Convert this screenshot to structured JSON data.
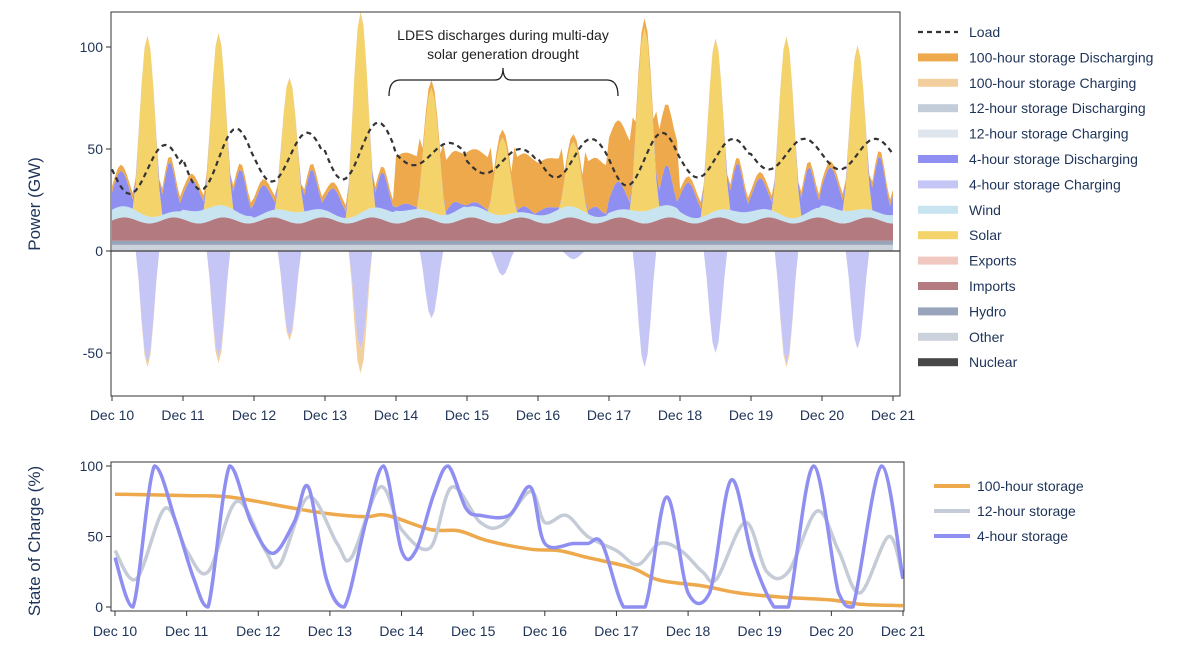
{
  "chart_data": [
    {
      "type": "area",
      "ylabel": "Power (GW)",
      "xlabel": "",
      "ylim": [
        -70,
        112
      ],
      "yticks": [
        -50,
        0,
        50,
        100
      ],
      "x_tick_labels": [
        "Dec 10",
        "Dec 11",
        "Dec 12",
        "Dec 13",
        "Dec 14",
        "Dec 15",
        "Dec 16",
        "Dec 17",
        "Dec 18",
        "Dec 19",
        "Dec 20",
        "Dec 21"
      ],
      "annotation": "LDES discharges during multi-day solar generation drought",
      "annotation_lines": [
        "LDES discharges during multi-day",
        "solar generation drought"
      ],
      "legend": [
        {
          "label": "Load",
          "color": "#333333",
          "style": "dashed"
        },
        {
          "label": "100-hour storage Discharging",
          "color": "#eda94b"
        },
        {
          "label": "100-hour storage Charging",
          "color": "#f3cf9e"
        },
        {
          "label": "12-hour storage Discharging",
          "color": "#c3ccd9"
        },
        {
          "label": "12-hour storage Charging",
          "color": "#dfe5ec"
        },
        {
          "label": "4-hour storage Discharging",
          "color": "#8f8ff2"
        },
        {
          "label": "4-hour storage Charging",
          "color": "#c6c6f6"
        },
        {
          "label": "Wind",
          "color": "#c7e4f0"
        },
        {
          "label": "Solar",
          "color": "#f3d36a"
        },
        {
          "label": "Exports",
          "color": "#f0c8bf"
        },
        {
          "label": "Imports",
          "color": "#b37a80"
        },
        {
          "label": "Hydro",
          "color": "#98a4ba"
        },
        {
          "label": "Other",
          "color": "#ccd2dc"
        },
        {
          "label": "Nuclear",
          "color": "#474747"
        }
      ],
      "series": [
        {
          "name": "Other",
          "values_by_day": [
            3,
            3,
            3,
            3,
            3,
            3,
            3,
            3,
            3,
            3,
            3,
            3
          ]
        },
        {
          "name": "Hydro",
          "values_by_day": [
            2,
            2,
            2,
            2,
            2,
            2,
            2,
            2,
            2,
            2,
            2,
            2
          ]
        },
        {
          "name": "Imports",
          "values_by_day": [
            10,
            10,
            10,
            10,
            10,
            10,
            10,
            10,
            10,
            10,
            10,
            10
          ]
        },
        {
          "name": "Wind",
          "values_by_day": [
            4,
            5,
            4,
            4,
            5,
            4,
            4,
            5,
            4,
            4,
            5,
            5
          ]
        },
        {
          "name": "Solar",
          "daily_peak": [
            88,
            84,
            65,
            98,
            61,
            38,
            32,
            90,
            84,
            88,
            80
          ]
        },
        {
          "name": "4-hour storage Discharging",
          "daily_peak": [
            25,
            22,
            20,
            18,
            5,
            3,
            5,
            20,
            24,
            22,
            28
          ]
        },
        {
          "name": "100-hour storage Discharging",
          "daily_peak": [
            3,
            3,
            3,
            3,
            25,
            26,
            24,
            30,
            3,
            3,
            3
          ]
        },
        {
          "name": "4-hour storage Charging",
          "daily_min": [
            -55,
            -52,
            -42,
            -48,
            -33,
            -12,
            -4,
            -57,
            -50,
            -55,
            -48
          ]
        },
        {
          "name": "100-hour storage Charging",
          "daily_min": [
            -2,
            -3,
            -2,
            -12,
            0,
            0,
            0,
            0,
            0,
            -2,
            0
          ]
        }
      ],
      "load": {
        "name": "Load",
        "daily_peak": [
          52,
          60,
          58,
          63,
          53,
          50,
          55,
          58,
          55,
          55,
          55
        ],
        "daily_min": [
          28,
          30,
          34,
          35,
          42,
          38,
          36,
          32,
          36,
          40,
          40
        ]
      }
    },
    {
      "type": "line",
      "ylabel": "State of Charge (%)",
      "xlabel": "",
      "ylim": [
        0,
        100
      ],
      "yticks": [
        0,
        50,
        100
      ],
      "x_tick_labels": [
        "Dec 10",
        "Dec 11",
        "Dec 12",
        "Dec 13",
        "Dec 14",
        "Dec 15",
        "Dec 16",
        "Dec 17",
        "Dec 18",
        "Dec 19",
        "Dec 20",
        "Dec 21"
      ],
      "series": [
        {
          "name": "100-hour storage",
          "color": "#eda94b",
          "points": [
            [
              0,
              80
            ],
            [
              1,
              79
            ],
            [
              1.6,
              78
            ],
            [
              2.5,
              70
            ],
            [
              3.0,
              66
            ],
            [
              3.5,
              64
            ],
            [
              3.8,
              65
            ],
            [
              4.4,
              55
            ],
            [
              4.8,
              54
            ],
            [
              5.2,
              47
            ],
            [
              5.8,
              41
            ],
            [
              6.2,
              40
            ],
            [
              6.6,
              35
            ],
            [
              7.2,
              28
            ],
            [
              7.6,
              19
            ],
            [
              8.2,
              15
            ],
            [
              8.7,
              10
            ],
            [
              9.3,
              7
            ],
            [
              10,
              5
            ],
            [
              10.4,
              2
            ],
            [
              11,
              1
            ]
          ]
        },
        {
          "name": "12-hour storage",
          "color": "#c5ccd7",
          "points": [
            [
              0,
              40
            ],
            [
              0.3,
              20
            ],
            [
              0.7,
              70
            ],
            [
              1.0,
              40
            ],
            [
              1.3,
              25
            ],
            [
              1.7,
              75
            ],
            [
              2.1,
              40
            ],
            [
              2.3,
              30
            ],
            [
              2.7,
              78
            ],
            [
              3.1,
              45
            ],
            [
              3.3,
              35
            ],
            [
              3.7,
              85
            ],
            [
              4.0,
              55
            ],
            [
              4.4,
              42
            ],
            [
              4.7,
              85
            ],
            [
              5.1,
              60
            ],
            [
              5.4,
              58
            ],
            [
              5.8,
              82
            ],
            [
              6.0,
              60
            ],
            [
              6.3,
              65
            ],
            [
              6.6,
              50
            ],
            [
              7.0,
              40
            ],
            [
              7.3,
              30
            ],
            [
              7.6,
              45
            ],
            [
              7.9,
              40
            ],
            [
              8.2,
              25
            ],
            [
              8.4,
              20
            ],
            [
              8.8,
              60
            ],
            [
              9.1,
              25
            ],
            [
              9.4,
              25
            ],
            [
              9.8,
              68
            ],
            [
              10.1,
              40
            ],
            [
              10.4,
              10
            ],
            [
              10.8,
              50
            ],
            [
              11,
              20
            ]
          ]
        },
        {
          "name": "4-hour storage",
          "color": "#8f8ff2",
          "points": [
            [
              0,
              35
            ],
            [
              0.25,
              0
            ],
            [
              0.55,
              100
            ],
            [
              0.85,
              60
            ],
            [
              1.1,
              20
            ],
            [
              1.3,
              0
            ],
            [
              1.6,
              100
            ],
            [
              1.9,
              60
            ],
            [
              2.2,
              38
            ],
            [
              2.5,
              60
            ],
            [
              2.7,
              85
            ],
            [
              2.95,
              20
            ],
            [
              3.2,
              0
            ],
            [
              3.5,
              60
            ],
            [
              3.75,
              100
            ],
            [
              4.0,
              40
            ],
            [
              4.2,
              40
            ],
            [
              4.45,
              80
            ],
            [
              4.65,
              100
            ],
            [
              4.9,
              70
            ],
            [
              5.1,
              65
            ],
            [
              5.5,
              65
            ],
            [
              5.8,
              85
            ],
            [
              6.0,
              45
            ],
            [
              6.4,
              45
            ],
            [
              6.6,
              45
            ],
            [
              6.8,
              45
            ],
            [
              7.1,
              0
            ],
            [
              7.4,
              0
            ],
            [
              7.7,
              78
            ],
            [
              8.0,
              10
            ],
            [
              8.3,
              10
            ],
            [
              8.6,
              90
            ],
            [
              8.9,
              35
            ],
            [
              9.2,
              0
            ],
            [
              9.4,
              0
            ],
            [
              9.75,
              100
            ],
            [
              10.1,
              10
            ],
            [
              10.3,
              0
            ],
            [
              10.7,
              100
            ],
            [
              11,
              20
            ]
          ]
        }
      ]
    }
  ]
}
